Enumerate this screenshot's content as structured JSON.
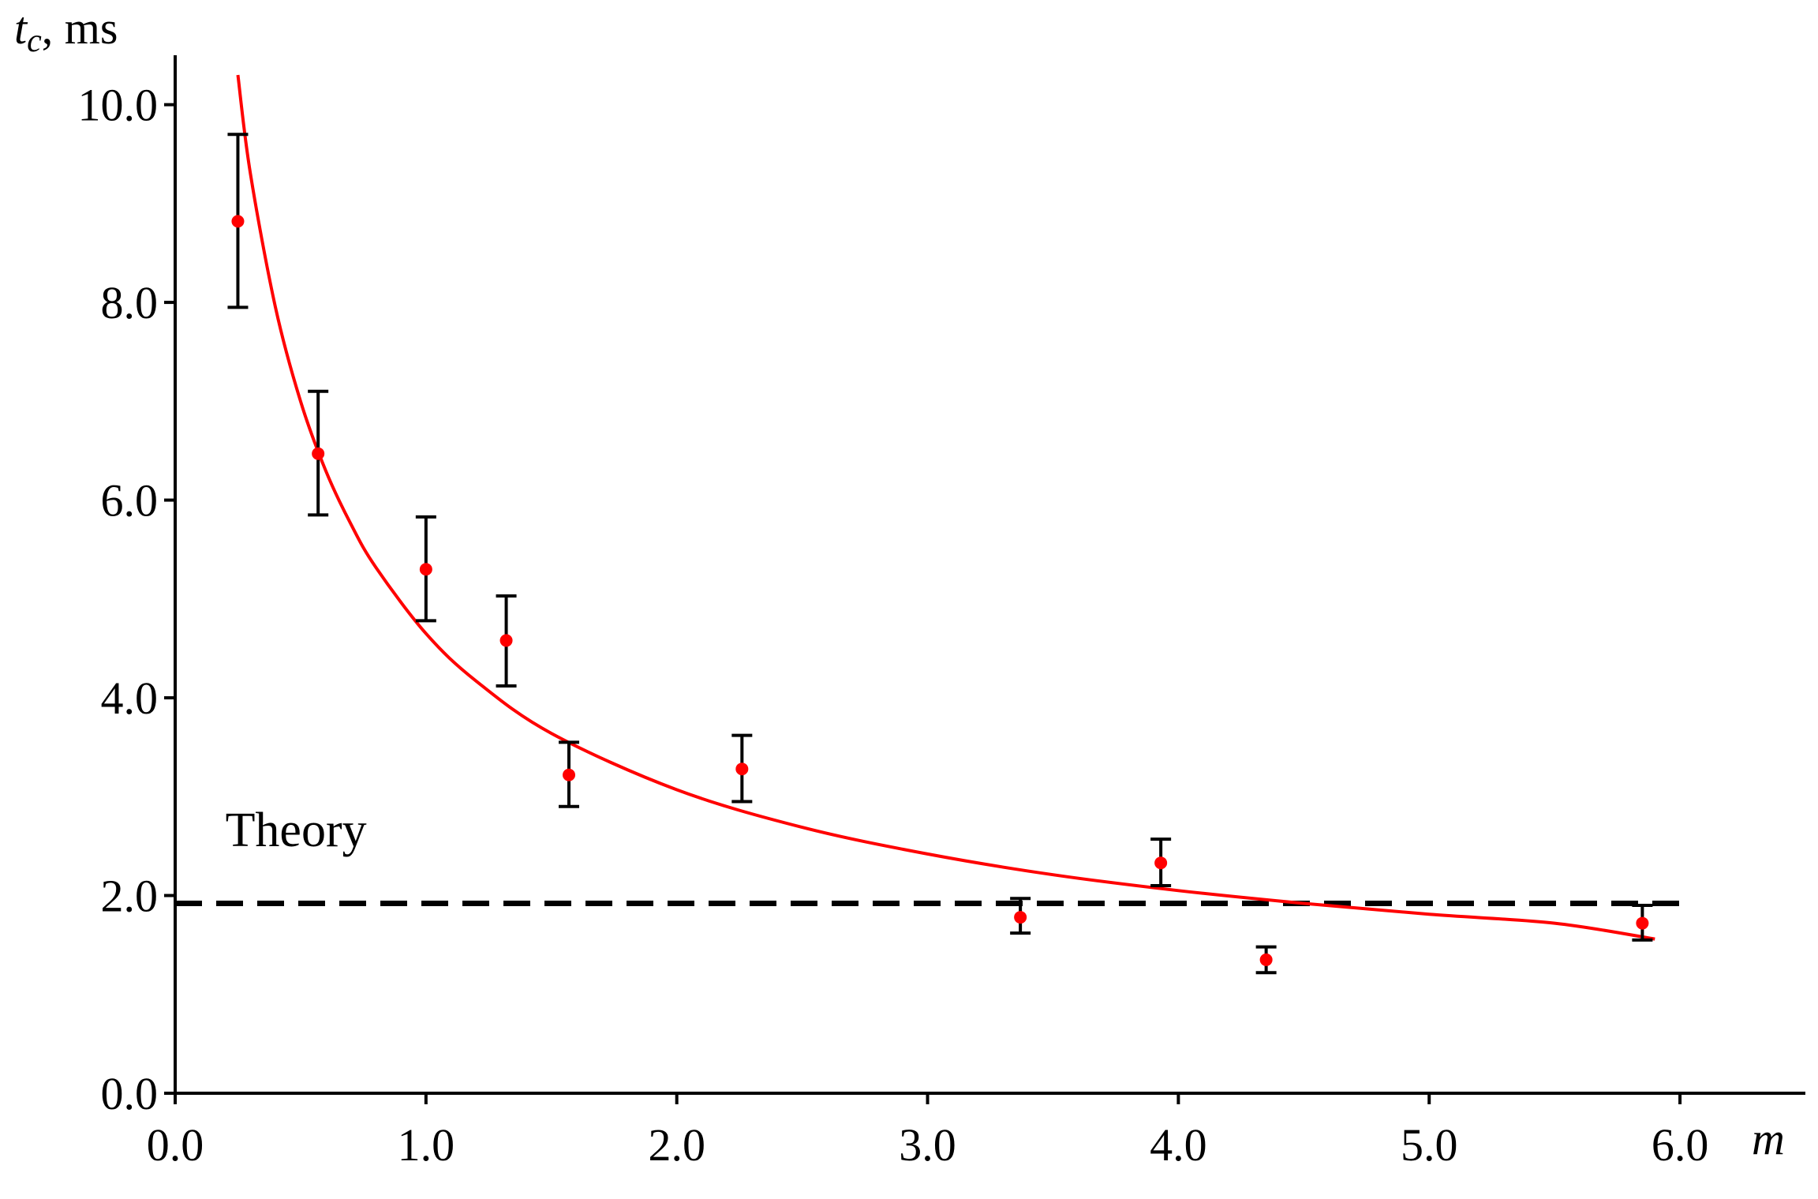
{
  "chart_data": {
    "type": "scatter",
    "title": "",
    "xlabel": "m",
    "ylabel": {
      "symbol": "t",
      "subscript": "c",
      "unit": ", ms"
    },
    "xlim": [
      0.0,
      6.5
    ],
    "ylim": [
      0.0,
      10.5
    ],
    "x_ticks": [
      "0.0",
      "1.0",
      "2.0",
      "3.0",
      "4.0",
      "5.0",
      "6.0"
    ],
    "y_ticks": [
      "0.0",
      "2.0",
      "4.0",
      "6.0",
      "8.0",
      "10.0"
    ],
    "x_tick_values": [
      0.0,
      1.0,
      2.0,
      3.0,
      4.0,
      5.0,
      6.0
    ],
    "y_tick_values": [
      0.0,
      2.0,
      4.0,
      6.0,
      8.0,
      10.0
    ],
    "grid": false,
    "series": [
      {
        "kind": "points_with_error_bars",
        "color": "#ff0000",
        "error_bar_color": "#000000",
        "points": [
          {
            "x": 0.25,
            "y": 8.82,
            "y_low": 7.95,
            "y_high": 9.7
          },
          {
            "x": 0.57,
            "y": 6.47,
            "y_low": 5.85,
            "y_high": 7.1
          },
          {
            "x": 1.0,
            "y": 5.3,
            "y_low": 4.78,
            "y_high": 5.83
          },
          {
            "x": 1.32,
            "y": 4.58,
            "y_low": 4.12,
            "y_high": 5.03
          },
          {
            "x": 1.57,
            "y": 3.22,
            "y_low": 2.9,
            "y_high": 3.55
          },
          {
            "x": 2.26,
            "y": 3.28,
            "y_low": 2.95,
            "y_high": 3.62
          },
          {
            "x": 3.37,
            "y": 1.78,
            "y_low": 1.62,
            "y_high": 1.97
          },
          {
            "x": 3.93,
            "y": 2.33,
            "y_low": 2.1,
            "y_high": 2.57
          },
          {
            "x": 4.35,
            "y": 1.35,
            "y_low": 1.22,
            "y_high": 1.48
          },
          {
            "x": 5.85,
            "y": 1.72,
            "y_low": 1.55,
            "y_high": 1.9
          }
        ]
      },
      {
        "kind": "fit_curve",
        "color": "#ff0000",
        "x": [
          0.25,
          0.3,
          0.4,
          0.5,
          0.6,
          0.7,
          0.8,
          1.0,
          1.2,
          1.5,
          2.0,
          2.5,
          3.0,
          3.5,
          4.0,
          4.5,
          5.0,
          5.5,
          5.9
        ],
        "y": [
          10.3,
          9.3,
          7.95,
          7.0,
          6.3,
          5.76,
          5.32,
          4.65,
          4.17,
          3.64,
          3.07,
          2.69,
          2.42,
          2.21,
          2.05,
          1.92,
          1.81,
          1.72,
          1.56
        ]
      },
      {
        "kind": "reference_line",
        "style": "dashed",
        "color": "#000000",
        "y": 1.92,
        "x_range": [
          0.0,
          6.0
        ]
      }
    ],
    "annotations": [
      {
        "text": "Theory",
        "x": 0.2,
        "y": 2.5
      }
    ]
  }
}
